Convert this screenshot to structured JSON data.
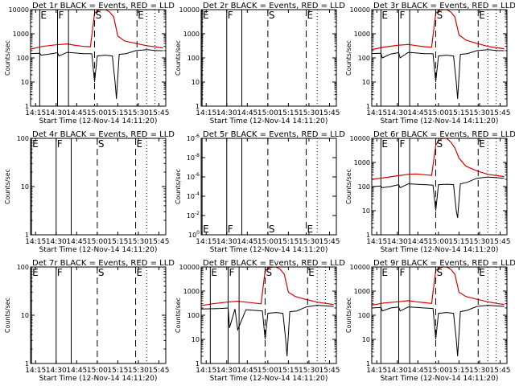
{
  "figure": {
    "xlabel": "Start Time (12-Nov-14 14:11:20)",
    "ylabel": "Counts/sec"
  },
  "colors": {
    "events": "#000000",
    "lld": "#dd0000",
    "axes": "#000000"
  },
  "chart_data": [
    {
      "type": "line",
      "title": "Det 1r BLACK = Events, RED = LLD",
      "xlabel": "Start Time (12-Nov-14 14:11:20)",
      "ylabel": "Counts/sec",
      "xlim": [
        "14:11:20",
        "15:50:00"
      ],
      "ylim": [
        1,
        10000
      ],
      "yscale": "log",
      "xticks": [
        "14:15",
        "14:30",
        "14:45",
        "15:00",
        "15:15",
        "15:30",
        "15:45"
      ],
      "yticks": [
        "1",
        "10",
        "100",
        "1000",
        "10000"
      ],
      "event_lines": [
        {
          "label": "E",
          "time": "14:18",
          "style": "solid"
        },
        {
          "label": "F",
          "time": "14:31",
          "style": "solid"
        },
        {
          "label": "S",
          "time": "14:58",
          "style": "dashed"
        },
        {
          "label": "E",
          "time": "15:29",
          "style": "dashed"
        }
      ],
      "solid_lines": [
        "14:39"
      ],
      "dotted_lines": [
        "15:36",
        "15:42"
      ],
      "series": [
        {
          "name": "Events",
          "x": [
            "14:11",
            "14:18",
            "14:19",
            "14:25",
            "14:31",
            "14:32",
            "14:38",
            "14:44",
            "14:50",
            "14:56",
            "14:58",
            "15:00",
            "15:06",
            "15:11",
            "15:13",
            "15:14",
            "15:16",
            "15:21",
            "15:28",
            "15:36",
            "15:44",
            "15:48"
          ],
          "values": [
            150,
            155,
            130,
            145,
            165,
            120,
            170,
            160,
            150,
            150,
            10,
            120,
            130,
            120,
            10,
            2,
            140,
            150,
            200,
            220,
            200,
            200
          ]
        },
        {
          "name": "LLD",
          "x": [
            "14:11",
            "14:20",
            "14:30",
            "14:38",
            "14:44",
            "14:50",
            "14:55",
            "14:58",
            "15:00",
            "15:03",
            "15:06",
            "15:09",
            "15:12",
            "15:15",
            "15:20",
            "15:28",
            "15:36",
            "15:44",
            "15:48"
          ],
          "values": [
            230,
            300,
            350,
            380,
            330,
            300,
            290,
            7000,
            9000,
            10000,
            10000,
            8000,
            5000,
            800,
            500,
            400,
            320,
            280,
            260
          ]
        }
      ]
    },
    {
      "type": "line",
      "title": "Det 2r BLACK = Events, RED = LLD",
      "xlabel": "Start Time (12-Nov-14 14:11:20)",
      "ylabel": "Counts/sec",
      "xlim": [
        "14:11:20",
        "15:50:00"
      ],
      "ylim": [
        1,
        10000
      ],
      "yscale": "log",
      "xticks": [
        "14:15",
        "14:30",
        "14:45",
        "15:00",
        "15:15",
        "15:30",
        "15:45"
      ],
      "yticks": [
        "1",
        "10",
        "100",
        "1000",
        "10000"
      ],
      "event_lines": [
        {
          "label": "E",
          "time": "14:12",
          "style": "solid"
        },
        {
          "label": "F",
          "time": "14:30",
          "style": "solid"
        },
        {
          "label": "S",
          "time": "15:00",
          "style": "dashed"
        },
        {
          "label": "E",
          "time": "15:28",
          "style": "dashed"
        }
      ],
      "solid_lines": [
        "14:41"
      ],
      "dotted_lines": [
        "15:36"
      ],
      "series": []
    },
    {
      "type": "line",
      "title": "Det 3r BLACK = Events, RED = LLD",
      "xlabel": "Start Time (12-Nov-14 14:11:20)",
      "ylabel": "Counts/sec",
      "xlim": [
        "14:11:20",
        "15:50:00"
      ],
      "ylim": [
        1,
        10000
      ],
      "yscale": "log",
      "xticks": [
        "14:15",
        "14:30",
        "14:45",
        "15:00",
        "15:15",
        "15:30",
        "15:45"
      ],
      "yticks": [
        "1",
        "10",
        "100",
        "1000",
        "10000"
      ],
      "event_lines": [
        {
          "label": "E",
          "time": "14:18",
          "style": "solid"
        },
        {
          "label": "F",
          "time": "14:31",
          "style": "solid"
        },
        {
          "label": "S",
          "time": "14:58",
          "style": "dashed"
        },
        {
          "label": "E",
          "time": "15:29",
          "style": "dashed"
        }
      ],
      "solid_lines": [
        "14:39"
      ],
      "dotted_lines": [
        "15:36",
        "15:42"
      ],
      "series": [
        {
          "name": "Events",
          "x": [
            "14:11",
            "14:18",
            "14:19",
            "14:25",
            "14:31",
            "14:32",
            "14:38",
            "14:44",
            "14:50",
            "14:56",
            "14:58",
            "15:00",
            "15:06",
            "15:11",
            "15:13",
            "15:14",
            "15:16",
            "15:21",
            "15:28",
            "15:36",
            "15:44",
            "15:48"
          ],
          "values": [
            150,
            155,
            100,
            145,
            165,
            100,
            170,
            160,
            150,
            150,
            10,
            120,
            130,
            120,
            10,
            2,
            140,
            150,
            200,
            220,
            200,
            200
          ]
        },
        {
          "name": "LLD",
          "x": [
            "14:11",
            "14:20",
            "14:30",
            "14:38",
            "14:44",
            "14:50",
            "14:55",
            "14:58",
            "15:00",
            "15:03",
            "15:06",
            "15:09",
            "15:12",
            "15:15",
            "15:20",
            "15:28",
            "15:36",
            "15:44",
            "15:48"
          ],
          "values": [
            220,
            280,
            330,
            360,
            320,
            290,
            280,
            7000,
            9000,
            10000,
            10000,
            8000,
            5000,
            900,
            550,
            400,
            300,
            260,
            240
          ]
        }
      ]
    },
    {
      "type": "line",
      "title": "Det 4r BLACK = Events, RED = LLD",
      "xlabel": "Start Time (12-Nov-14 14:11:20)",
      "ylabel": "Counts/sec",
      "xlim": [
        "14:11:20",
        "15:50:00"
      ],
      "ylim": [
        1,
        100
      ],
      "yscale": "log",
      "xticks": [
        "14:15",
        "14:30",
        "14:45",
        "15:00",
        "15:15",
        "15:30",
        "15:45"
      ],
      "yticks": [
        "1",
        "10",
        "100"
      ],
      "event_lines": [
        {
          "label": "E",
          "time": "14:12",
          "style": "solid"
        },
        {
          "label": "F",
          "time": "14:30",
          "style": "solid"
        },
        {
          "label": "S",
          "time": "15:00",
          "style": "dashed"
        },
        {
          "label": "E",
          "time": "15:28",
          "style": "dashed"
        }
      ],
      "solid_lines": [
        "14:41"
      ],
      "dotted_lines": [
        "15:36"
      ],
      "series": []
    },
    {
      "type": "line",
      "title": "Det 5r BLACK = Events, RED = LLD",
      "xlabel": "Start Time (12-Nov-14 14:11:20)",
      "ylabel": "Counts/sec",
      "xlim": [
        "14:11:20",
        "15:50:00"
      ],
      "ylim": [
        1,
        1000000000
      ],
      "yscale": "log",
      "ylim_note": "tick labels as shown",
      "xticks": [
        "14:15",
        "14:30",
        "14:45",
        "15:00",
        "15:15",
        "15:30",
        "15:45"
      ],
      "yticks": [
        "10^0",
        "10^-2",
        "10^-4",
        "10^-6",
        "10^-8",
        "10^-6"
      ],
      "event_lines": [
        {
          "label": "E",
          "time": "14:12",
          "style": "solid"
        },
        {
          "label": "F",
          "time": "14:30",
          "style": "solid"
        },
        {
          "label": "S",
          "time": "15:00",
          "style": "dashed"
        },
        {
          "label": "E",
          "time": "15:28",
          "style": "dashed"
        }
      ],
      "solid_lines": [
        "14:41"
      ],
      "dotted_lines": [
        "15:36"
      ],
      "series": []
    },
    {
      "type": "line",
      "title": "Det 6r BLACK = Events, RED = LLD",
      "xlabel": "Start Time (12-Nov-14 14:11:20)",
      "ylabel": "Counts/sec",
      "xlim": [
        "14:11:20",
        "15:50:00"
      ],
      "ylim": [
        1,
        10000
      ],
      "yscale": "log",
      "xticks": [
        "14:15",
        "14:30",
        "14:45",
        "15:00",
        "15:15",
        "15:30",
        "15:45"
      ],
      "yticks": [
        "1",
        "10",
        "100",
        "1000",
        "10000"
      ],
      "event_lines": [
        {
          "label": "E",
          "time": "14:18",
          "style": "solid"
        },
        {
          "label": "F",
          "time": "14:31",
          "style": "solid"
        },
        {
          "label": "S",
          "time": "14:58",
          "style": "dashed"
        },
        {
          "label": "E",
          "time": "15:29",
          "style": "dashed"
        }
      ],
      "solid_lines": [
        "14:39"
      ],
      "dotted_lines": [
        "15:36",
        "15:42"
      ],
      "series": [
        {
          "name": "Events",
          "x": [
            "14:11",
            "14:18",
            "14:19",
            "14:25",
            "14:31",
            "14:32",
            "14:38",
            "14:44",
            "14:50",
            "14:56",
            "14:58",
            "15:00",
            "15:06",
            "15:11",
            "15:13",
            "15:14",
            "15:16",
            "15:21",
            "15:28",
            "15:36",
            "15:44",
            "15:48"
          ],
          "values": [
            100,
            105,
            90,
            100,
            120,
            90,
            130,
            125,
            120,
            115,
            10,
            120,
            125,
            120,
            10,
            5,
            130,
            150,
            220,
            250,
            230,
            220
          ]
        },
        {
          "name": "LLD",
          "x": [
            "14:11",
            "14:20",
            "14:30",
            "14:38",
            "14:44",
            "14:50",
            "14:55",
            "14:58",
            "15:00",
            "15:03",
            "15:06",
            "15:09",
            "15:12",
            "15:15",
            "15:20",
            "15:28",
            "15:36",
            "15:44",
            "15:48"
          ],
          "values": [
            200,
            230,
            280,
            320,
            330,
            310,
            290,
            5000,
            8000,
            10000,
            10000,
            7000,
            4000,
            1500,
            700,
            450,
            320,
            280,
            260
          ]
        }
      ]
    },
    {
      "type": "line",
      "title": "Det 7r BLACK = Events, RED = LLD",
      "xlabel": "Start Time (12-Nov-14 14:11:20)",
      "ylabel": "Counts/sec",
      "xlim": [
        "14:11:20",
        "15:50:00"
      ],
      "ylim": [
        1,
        100
      ],
      "yscale": "log",
      "xticks": [
        "14:15",
        "14:30",
        "14:45",
        "15:00",
        "15:15",
        "15:30",
        "15:45"
      ],
      "yticks": [
        "1",
        "10",
        "100"
      ],
      "event_lines": [
        {
          "label": "E",
          "time": "14:12",
          "style": "solid"
        },
        {
          "label": "F",
          "time": "14:30",
          "style": "solid"
        },
        {
          "label": "S",
          "time": "15:00",
          "style": "dashed"
        },
        {
          "label": "E",
          "time": "15:28",
          "style": "dashed"
        }
      ],
      "solid_lines": [
        "14:41"
      ],
      "dotted_lines": [
        "15:36"
      ],
      "series": []
    },
    {
      "type": "line",
      "title": "Det 8r BLACK = Events, RED = LLD",
      "xlabel": "Start Time (12-Nov-14 14:11:20)",
      "ylabel": "Counts/sec",
      "xlim": [
        "14:11:20",
        "15:50:00"
      ],
      "ylim": [
        1,
        10000
      ],
      "yscale": "log",
      "xticks": [
        "14:15",
        "14:30",
        "14:45",
        "15:00",
        "15:15",
        "15:30",
        "15:45"
      ],
      "yticks": [
        "1",
        "10",
        "100",
        "1000",
        "10000"
      ],
      "event_lines": [
        {
          "label": "E",
          "time": "14:18",
          "style": "solid"
        },
        {
          "label": "F",
          "time": "14:31",
          "style": "solid"
        },
        {
          "label": "S",
          "time": "14:58",
          "style": "dashed"
        },
        {
          "label": "E",
          "time": "15:29",
          "style": "dashed"
        }
      ],
      "solid_lines": [
        "14:39"
      ],
      "dotted_lines": [
        "15:36",
        "15:42"
      ],
      "series": [
        {
          "name": "Events",
          "x": [
            "14:11",
            "14:18",
            "14:25",
            "14:31",
            "14:32",
            "14:36",
            "14:38",
            "14:44",
            "14:50",
            "14:56",
            "14:58",
            "15:00",
            "15:06",
            "15:11",
            "15:13",
            "15:14",
            "15:16",
            "15:21",
            "15:28",
            "15:36",
            "15:44",
            "15:48"
          ],
          "values": [
            180,
            185,
            190,
            200,
            30,
            180,
            25,
            170,
            160,
            150,
            10,
            120,
            130,
            120,
            10,
            2,
            140,
            150,
            220,
            260,
            240,
            230
          ]
        },
        {
          "name": "LLD",
          "x": [
            "14:11",
            "14:20",
            "14:30",
            "14:38",
            "14:44",
            "14:50",
            "14:55",
            "14:58",
            "15:00",
            "15:03",
            "15:06",
            "15:09",
            "15:12",
            "15:15",
            "15:20",
            "15:28",
            "15:36",
            "15:44",
            "15:48"
          ],
          "values": [
            250,
            300,
            350,
            380,
            350,
            320,
            300,
            7000,
            9000,
            10000,
            10000,
            8000,
            5000,
            900,
            600,
            450,
            350,
            300,
            280
          ]
        }
      ]
    },
    {
      "type": "line",
      "title": "Det 9r BLACK = Events, RED = LLD",
      "xlabel": "Start Time (12-Nov-14 14:11:20)",
      "ylabel": "Counts/sec",
      "xlim": [
        "14:11:20",
        "15:50:00"
      ],
      "ylim": [
        1,
        10000
      ],
      "yscale": "log",
      "xticks": [
        "14:15",
        "14:30",
        "14:45",
        "15:00",
        "15:15",
        "15:30",
        "15:45"
      ],
      "yticks": [
        "1",
        "10",
        "100",
        "1000",
        "10000"
      ],
      "event_lines": [
        {
          "label": "E",
          "time": "14:18",
          "style": "solid"
        },
        {
          "label": "F",
          "time": "14:31",
          "style": "solid"
        },
        {
          "label": "S",
          "time": "14:58",
          "style": "dashed"
        },
        {
          "label": "E",
          "time": "15:29",
          "style": "dashed"
        }
      ],
      "solid_lines": [
        "14:39"
      ],
      "dotted_lines": [
        "15:36",
        "15:42"
      ],
      "series": [
        {
          "name": "Events",
          "x": [
            "14:11",
            "14:18",
            "14:19",
            "14:25",
            "14:31",
            "14:32",
            "14:38",
            "14:44",
            "14:50",
            "14:56",
            "14:58",
            "15:00",
            "15:06",
            "15:11",
            "15:13",
            "15:14",
            "15:16",
            "15:21",
            "15:28",
            "15:36",
            "15:44",
            "15:48"
          ],
          "values": [
            200,
            210,
            150,
            200,
            220,
            150,
            220,
            210,
            200,
            190,
            10,
            120,
            130,
            120,
            10,
            2,
            140,
            160,
            230,
            260,
            240,
            230
          ]
        },
        {
          "name": "LLD",
          "x": [
            "14:11",
            "14:20",
            "14:30",
            "14:38",
            "14:44",
            "14:50",
            "14:55",
            "14:58",
            "15:00",
            "15:03",
            "15:06",
            "15:09",
            "15:12",
            "15:15",
            "15:20",
            "15:28",
            "15:36",
            "15:44",
            "15:48"
          ],
          "values": [
            260,
            320,
            360,
            400,
            360,
            330,
            310,
            7000,
            9000,
            10000,
            10000,
            8000,
            5000,
            900,
            600,
            460,
            360,
            300,
            280
          ]
        }
      ]
    }
  ]
}
